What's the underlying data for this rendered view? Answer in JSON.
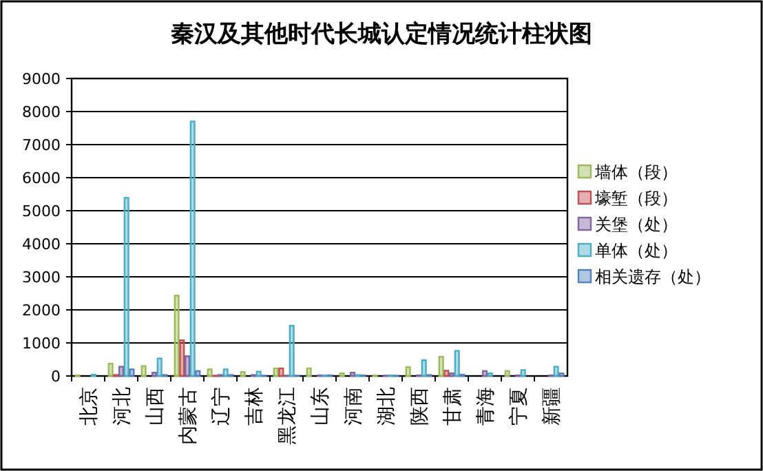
{
  "chart_data": {
    "type": "bar",
    "title": "秦汉及其他时代长城认定情况统计柱状图",
    "categories": [
      "北京",
      "河北",
      "山西",
      "内蒙古",
      "辽宁",
      "吉林",
      "黑龙江",
      "山东",
      "河南",
      "湖北",
      "陕西",
      "甘肃",
      "青海",
      "宁夏",
      "新疆"
    ],
    "series": [
      {
        "name": "墙体（段）",
        "color": "#9bbb59",
        "values": [
          20,
          370,
          300,
          2430,
          200,
          120,
          230,
          230,
          80,
          20,
          270,
          580,
          0,
          150,
          0
        ]
      },
      {
        "name": "壕堑（段）",
        "color": "#c0504d",
        "values": [
          0,
          30,
          0,
          1080,
          10,
          0,
          230,
          0,
          0,
          0,
          0,
          160,
          0,
          0,
          0
        ]
      },
      {
        "name": "关堡（处）",
        "color": "#8064a2",
        "values": [
          0,
          280,
          100,
          600,
          30,
          30,
          10,
          20,
          100,
          10,
          20,
          80,
          150,
          20,
          20
        ]
      },
      {
        "name": "单体（处）",
        "color": "#4bacc6",
        "values": [
          40,
          5390,
          530,
          7700,
          200,
          130,
          1520,
          20,
          30,
          20,
          480,
          760,
          80,
          180,
          280
        ]
      },
      {
        "name": "相关遗存（处）",
        "color": "#4f81bd",
        "values": [
          0,
          200,
          30,
          150,
          30,
          10,
          10,
          20,
          20,
          10,
          30,
          40,
          0,
          0,
          80
        ]
      }
    ],
    "ylim": [
      0,
      9000
    ],
    "yticks": [
      0,
      1000,
      2000,
      3000,
      4000,
      5000,
      6000,
      7000,
      8000,
      9000
    ],
    "grid": "y",
    "legend": "right"
  }
}
